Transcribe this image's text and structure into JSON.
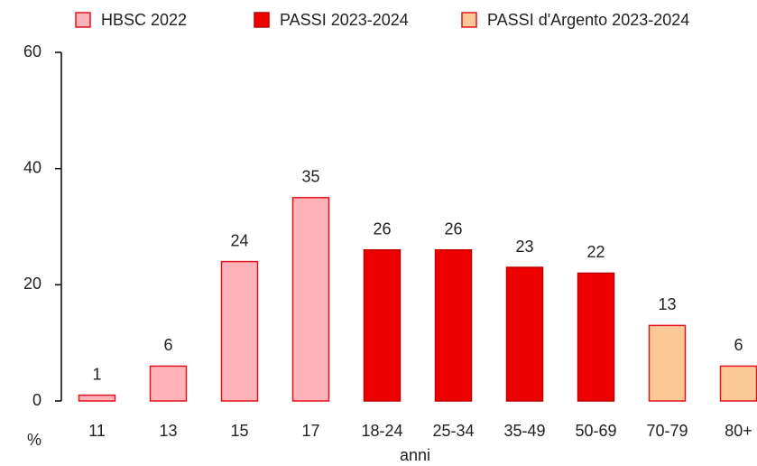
{
  "chart_data": {
    "type": "bar",
    "categories": [
      "11",
      "13",
      "15",
      "17",
      "18-24",
      "25-34",
      "35-49",
      "50-69",
      "70-79",
      "80+"
    ],
    "series": [
      {
        "name": "HBSC 2022",
        "color": "#ffb3b8",
        "edge": "#e0141e",
        "values": [
          1,
          6,
          24,
          35,
          null,
          null,
          null,
          null,
          null,
          null
        ]
      },
      {
        "name": "PASSI 2023-2024",
        "color": "#ee0000",
        "edge": "#c00000",
        "values": [
          null,
          null,
          null,
          null,
          26,
          26,
          23,
          22,
          null,
          null
        ]
      },
      {
        "name": "PASSI d'Argento 2023-2024",
        "color": "#fcc996",
        "edge": "#e0141e",
        "values": [
          null,
          null,
          null,
          null,
          null,
          null,
          null,
          null,
          13,
          6
        ]
      }
    ],
    "ylabel": "%",
    "xlabel": "anni",
    "ylim": [
      0,
      60
    ],
    "yticks": [
      0,
      20,
      40,
      60
    ],
    "grid": false
  }
}
